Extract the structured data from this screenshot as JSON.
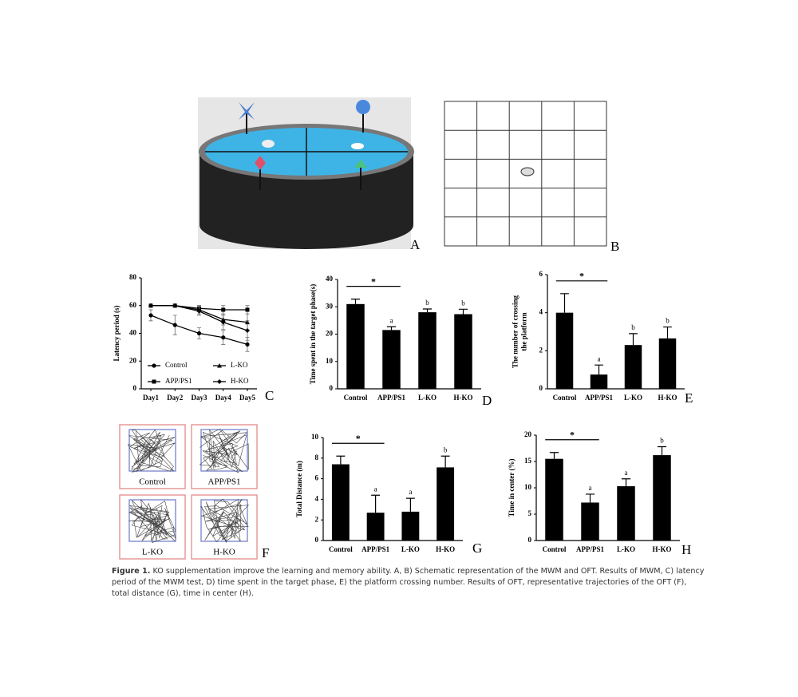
{
  "figure": {
    "panel_a": "A",
    "panel_b": "B",
    "panel_f": "F",
    "oft_labels": [
      "Control",
      "APP/PS1",
      "L-KO",
      "H-KO"
    ],
    "caption_label": "Figure 1.",
    "caption_text": "KO supplementation improve the learning and memory ability. A, B) Schematic representation of the MWM and OFT. Results of MWM, C) latency period of the MWM test, D) time spent in the target phase, E) the platform crossing number. Results of OFT, representative trajectories of the OFT (F), total distance (G), time in center (H)."
  },
  "chart_data": [
    {
      "type": "line",
      "panel": "C",
      "ylabel": [
        "Latency period (s)"
      ],
      "categories": [
        "Day1",
        "Day2",
        "Day3",
        "Day4",
        "Day5"
      ],
      "series": [
        {
          "name": "Control",
          "color": "#000000",
          "marker": "circle",
          "values": [
            53,
            46,
            40,
            37,
            32
          ],
          "errors": [
            4,
            7,
            4,
            5,
            5
          ]
        },
        {
          "name": "APP/PS1",
          "color": "#000000",
          "marker": "square",
          "values": [
            60,
            60,
            58,
            57,
            57
          ],
          "errors": [
            1,
            1,
            2,
            3,
            3
          ]
        },
        {
          "name": "L-KO",
          "color": "#000000",
          "marker": "triangle",
          "values": [
            60,
            60,
            57,
            50,
            48
          ],
          "errors": [
            1,
            1,
            3,
            4,
            6
          ]
        },
        {
          "name": "H-KO",
          "color": "#000000",
          "marker": "diamond",
          "values": [
            60,
            60,
            56,
            48,
            42
          ],
          "errors": [
            1,
            1,
            3,
            5,
            7
          ]
        }
      ],
      "ylim": [
        0,
        80
      ],
      "yticks": [
        0,
        20,
        40,
        60,
        80
      ]
    },
    {
      "type": "bar",
      "panel": "D",
      "ylabel": [
        "Time spent in the target phase(s)"
      ],
      "categories": [
        "Control",
        "APP/PS1",
        "L-KO",
        "H-KO"
      ],
      "values": [
        31,
        21.5,
        28,
        27.3
      ],
      "errors": [
        1.8,
        1.2,
        1.2,
        1.8
      ],
      "sig_labels": [
        null,
        "a",
        "b",
        "b"
      ],
      "bracket_label": "*",
      "color": "#000000",
      "ylim": [
        0,
        40
      ],
      "yticks": [
        0,
        10,
        20,
        30,
        40
      ]
    },
    {
      "type": "bar",
      "panel": "E",
      "ylabel": [
        "The number of crossing",
        "the platform"
      ],
      "categories": [
        "Control",
        "APP/PS1",
        "L-KO",
        "H-KO"
      ],
      "values": [
        4.0,
        0.75,
        2.3,
        2.65
      ],
      "errors": [
        1.0,
        0.5,
        0.6,
        0.6
      ],
      "sig_labels": [
        null,
        "a",
        "b",
        "b"
      ],
      "bracket_label": "*",
      "color": "#000000",
      "ylim": [
        0,
        6
      ],
      "yticks": [
        0,
        2,
        4,
        6
      ]
    },
    {
      "type": "bar",
      "panel": "G",
      "ylabel": [
        "Total Distance (m)"
      ],
      "categories": [
        "Control",
        "APP/PS1",
        "L-KO",
        "H-KO"
      ],
      "values": [
        7.4,
        2.7,
        2.8,
        7.1
      ],
      "errors": [
        0.8,
        1.7,
        1.3,
        1.1
      ],
      "sig_labels": [
        null,
        "a",
        "a",
        "b"
      ],
      "bracket_label": "*",
      "color": "#000000",
      "ylim": [
        0,
        10
      ],
      "yticks": [
        0,
        2,
        4,
        6,
        8,
        10
      ]
    },
    {
      "type": "bar",
      "panel": "H",
      "ylabel": [
        "Time in center (%)"
      ],
      "categories": [
        "Control",
        "APP/PS1",
        "L-KO",
        "H-KO"
      ],
      "values": [
        15.5,
        7.2,
        10.3,
        16.2
      ],
      "errors": [
        1.2,
        1.6,
        1.4,
        1.6
      ],
      "sig_labels": [
        null,
        "a",
        "a",
        "b"
      ],
      "bracket_label": "*",
      "color": "#000000",
      "ylim": [
        0,
        20
      ],
      "yticks": [
        0,
        5,
        10,
        15,
        20
      ]
    }
  ]
}
